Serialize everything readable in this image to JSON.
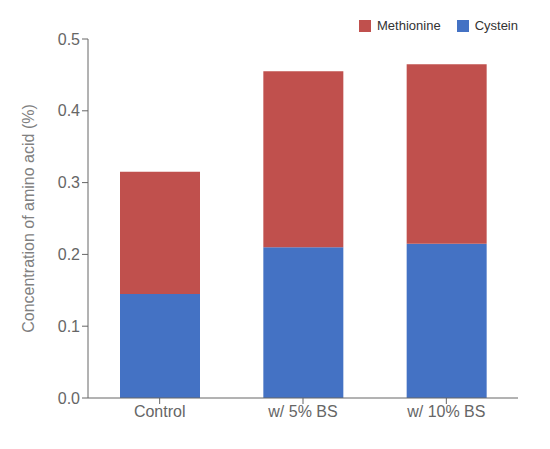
{
  "chart_data": {
    "type": "bar",
    "stacked": true,
    "categories": [
      "Control",
      "w/ 5% BS",
      "w/ 10% BS"
    ],
    "series": [
      {
        "name": "Cystein",
        "color": "#4472C4",
        "values": [
          0.145,
          0.21,
          0.215
        ]
      },
      {
        "name": "Methionine",
        "color": "#C0504D",
        "values": [
          0.17,
          0.245,
          0.25
        ]
      }
    ],
    "ylabel": "Concentration of amino acid (%)",
    "ylim": [
      0.0,
      0.5
    ],
    "yticks": [
      {
        "value": 0,
        "label": "0.0"
      },
      0.1,
      0.2,
      0.3,
      0.4,
      0.5
    ],
    "grid": false,
    "legend": "upper right"
  }
}
